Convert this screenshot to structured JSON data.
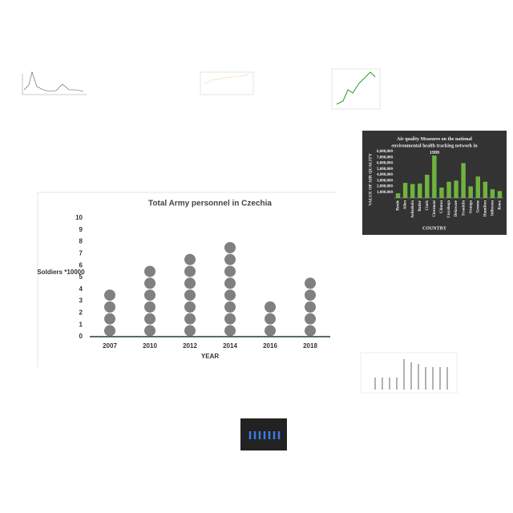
{
  "chart_data": [
    {
      "type": "dot",
      "title": "Total Army personnel in Czechia",
      "y_label": "Soldiers *10000",
      "x_label": "YEAR",
      "categories": [
        "2007",
        "2010",
        "2012",
        "2014",
        "2016",
        "2018"
      ],
      "values": [
        4,
        6,
        7,
        8,
        3,
        5
      ],
      "color": "#808080",
      "ylim": [
        0,
        10
      ],
      "yticks": [
        0,
        1,
        2,
        3,
        4,
        5,
        6,
        7,
        8,
        9,
        10
      ]
    },
    {
      "type": "bar",
      "title": "Air quality Measures on the national environmental health tracking network in 1999",
      "y_label": "VALUE OF AIR QUALITY",
      "x_label": "COUNTRY",
      "categories": [
        "Brede",
        "Allen",
        "Ashtabula",
        "Butler",
        "Clark",
        "Clermont",
        "Clinton",
        "Cuyahoga",
        "Delaware",
        "Franklin",
        "Geauga",
        "Greene",
        "Hamilton",
        "Jefferson",
        "Knox"
      ],
      "values": [
        800000,
        2600000,
        2400000,
        2500000,
        4000000,
        7300000,
        1800000,
        2800000,
        3000000,
        6000000,
        2000000,
        3700000,
        2800000,
        1500000,
        1200000
      ],
      "color": "#6fb33f",
      "ylim": [
        0,
        8000000
      ],
      "yticks": [
        {
          "value": 1000000,
          "label": "1,000,000"
        },
        {
          "value": 2000000,
          "label": "2,000,000"
        },
        {
          "value": 3000000,
          "label": "3,000,000"
        },
        {
          "value": 4000000,
          "label": "4,000,000"
        },
        {
          "value": 5000000,
          "label": "5,000,000"
        },
        {
          "value": 6000000,
          "label": "6,000,000"
        },
        {
          "value": 7000000,
          "label": "7,000,000"
        },
        {
          "value": 8000000,
          "label": "8,000,000"
        }
      ]
    }
  ]
}
